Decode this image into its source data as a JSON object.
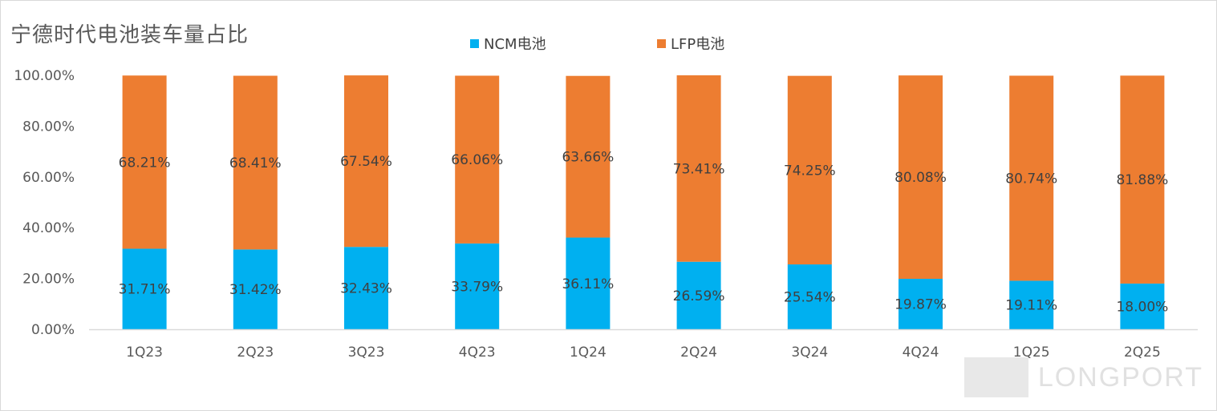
{
  "title": "宁德时代电池装车量占比",
  "watermark": {
    "brand": "LONGPORT"
  },
  "colors": {
    "ncm": "#00b0f0",
    "lfp": "#ed7d31",
    "axis_text": "#595959",
    "axis_line": "#d9d9d9",
    "label_text": "#404040"
  },
  "chart_data": {
    "type": "bar",
    "stacked": true,
    "title": "宁德时代电池装车量占比",
    "categories": [
      "1Q23",
      "2Q23",
      "3Q23",
      "4Q23",
      "1Q24",
      "2Q24",
      "3Q24",
      "4Q24",
      "1Q25",
      "2Q25"
    ],
    "series": [
      {
        "name": "NCM电池",
        "values": [
          31.71,
          31.42,
          32.43,
          33.79,
          36.11,
          26.59,
          25.54,
          19.87,
          19.11,
          18.0
        ],
        "labels": [
          "31.71%",
          "31.42%",
          "32.43%",
          "33.79%",
          "36.11%",
          "26.59%",
          "25.54%",
          "19.87%",
          "19.11%",
          "18.00%"
        ]
      },
      {
        "name": "LFP电池",
        "values": [
          68.21,
          68.41,
          67.54,
          66.06,
          63.66,
          73.41,
          74.25,
          80.08,
          80.74,
          81.88
        ],
        "labels": [
          "68.21%",
          "68.41%",
          "67.54%",
          "66.06%",
          "63.66%",
          "73.41%",
          "74.25%",
          "80.08%",
          "80.74%",
          "81.88%"
        ]
      }
    ],
    "ylim": [
      0,
      100
    ],
    "yticks": [
      "0.00%",
      "20.00%",
      "40.00%",
      "60.00%",
      "80.00%",
      "100.00%"
    ],
    "ytick_values": [
      0,
      20,
      40,
      60,
      80,
      100
    ],
    "legend_position": "top-center",
    "grid": false
  }
}
